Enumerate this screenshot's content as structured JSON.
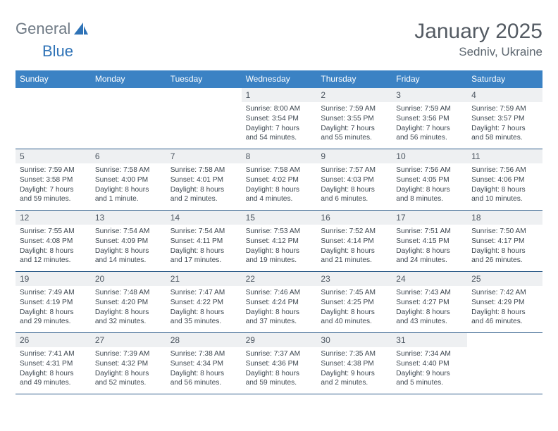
{
  "logo": {
    "word1": "General",
    "word2": "Blue"
  },
  "title": "January 2025",
  "location": "Sedniv, Ukraine",
  "colors": {
    "header_bg": "#3b82c4",
    "header_text": "#ffffff",
    "daynum_bg": "#eef0f2",
    "week_border": "#2f5d8a",
    "body_text": "#3d4750",
    "logo_grey": "#6f7a85",
    "logo_blue": "#2f73b7"
  },
  "weekdays": [
    "Sunday",
    "Monday",
    "Tuesday",
    "Wednesday",
    "Thursday",
    "Friday",
    "Saturday"
  ],
  "weeks": [
    [
      null,
      null,
      null,
      {
        "num": "1",
        "sunrise": "8:00 AM",
        "sunset": "3:54 PM",
        "daylight": "7 hours and 54 minutes."
      },
      {
        "num": "2",
        "sunrise": "7:59 AM",
        "sunset": "3:55 PM",
        "daylight": "7 hours and 55 minutes."
      },
      {
        "num": "3",
        "sunrise": "7:59 AM",
        "sunset": "3:56 PM",
        "daylight": "7 hours and 56 minutes."
      },
      {
        "num": "4",
        "sunrise": "7:59 AM",
        "sunset": "3:57 PM",
        "daylight": "7 hours and 58 minutes."
      }
    ],
    [
      {
        "num": "5",
        "sunrise": "7:59 AM",
        "sunset": "3:58 PM",
        "daylight": "7 hours and 59 minutes."
      },
      {
        "num": "6",
        "sunrise": "7:58 AM",
        "sunset": "4:00 PM",
        "daylight": "8 hours and 1 minute."
      },
      {
        "num": "7",
        "sunrise": "7:58 AM",
        "sunset": "4:01 PM",
        "daylight": "8 hours and 2 minutes."
      },
      {
        "num": "8",
        "sunrise": "7:58 AM",
        "sunset": "4:02 PM",
        "daylight": "8 hours and 4 minutes."
      },
      {
        "num": "9",
        "sunrise": "7:57 AM",
        "sunset": "4:03 PM",
        "daylight": "8 hours and 6 minutes."
      },
      {
        "num": "10",
        "sunrise": "7:56 AM",
        "sunset": "4:05 PM",
        "daylight": "8 hours and 8 minutes."
      },
      {
        "num": "11",
        "sunrise": "7:56 AM",
        "sunset": "4:06 PM",
        "daylight": "8 hours and 10 minutes."
      }
    ],
    [
      {
        "num": "12",
        "sunrise": "7:55 AM",
        "sunset": "4:08 PM",
        "daylight": "8 hours and 12 minutes."
      },
      {
        "num": "13",
        "sunrise": "7:54 AM",
        "sunset": "4:09 PM",
        "daylight": "8 hours and 14 minutes."
      },
      {
        "num": "14",
        "sunrise": "7:54 AM",
        "sunset": "4:11 PM",
        "daylight": "8 hours and 17 minutes."
      },
      {
        "num": "15",
        "sunrise": "7:53 AM",
        "sunset": "4:12 PM",
        "daylight": "8 hours and 19 minutes."
      },
      {
        "num": "16",
        "sunrise": "7:52 AM",
        "sunset": "4:14 PM",
        "daylight": "8 hours and 21 minutes."
      },
      {
        "num": "17",
        "sunrise": "7:51 AM",
        "sunset": "4:15 PM",
        "daylight": "8 hours and 24 minutes."
      },
      {
        "num": "18",
        "sunrise": "7:50 AM",
        "sunset": "4:17 PM",
        "daylight": "8 hours and 26 minutes."
      }
    ],
    [
      {
        "num": "19",
        "sunrise": "7:49 AM",
        "sunset": "4:19 PM",
        "daylight": "8 hours and 29 minutes."
      },
      {
        "num": "20",
        "sunrise": "7:48 AM",
        "sunset": "4:20 PM",
        "daylight": "8 hours and 32 minutes."
      },
      {
        "num": "21",
        "sunrise": "7:47 AM",
        "sunset": "4:22 PM",
        "daylight": "8 hours and 35 minutes."
      },
      {
        "num": "22",
        "sunrise": "7:46 AM",
        "sunset": "4:24 PM",
        "daylight": "8 hours and 37 minutes."
      },
      {
        "num": "23",
        "sunrise": "7:45 AM",
        "sunset": "4:25 PM",
        "daylight": "8 hours and 40 minutes."
      },
      {
        "num": "24",
        "sunrise": "7:43 AM",
        "sunset": "4:27 PM",
        "daylight": "8 hours and 43 minutes."
      },
      {
        "num": "25",
        "sunrise": "7:42 AM",
        "sunset": "4:29 PM",
        "daylight": "8 hours and 46 minutes."
      }
    ],
    [
      {
        "num": "26",
        "sunrise": "7:41 AM",
        "sunset": "4:31 PM",
        "daylight": "8 hours and 49 minutes."
      },
      {
        "num": "27",
        "sunrise": "7:39 AM",
        "sunset": "4:32 PM",
        "daylight": "8 hours and 52 minutes."
      },
      {
        "num": "28",
        "sunrise": "7:38 AM",
        "sunset": "4:34 PM",
        "daylight": "8 hours and 56 minutes."
      },
      {
        "num": "29",
        "sunrise": "7:37 AM",
        "sunset": "4:36 PM",
        "daylight": "8 hours and 59 minutes."
      },
      {
        "num": "30",
        "sunrise": "7:35 AM",
        "sunset": "4:38 PM",
        "daylight": "9 hours and 2 minutes."
      },
      {
        "num": "31",
        "sunrise": "7:34 AM",
        "sunset": "4:40 PM",
        "daylight": "9 hours and 5 minutes."
      },
      null
    ]
  ]
}
